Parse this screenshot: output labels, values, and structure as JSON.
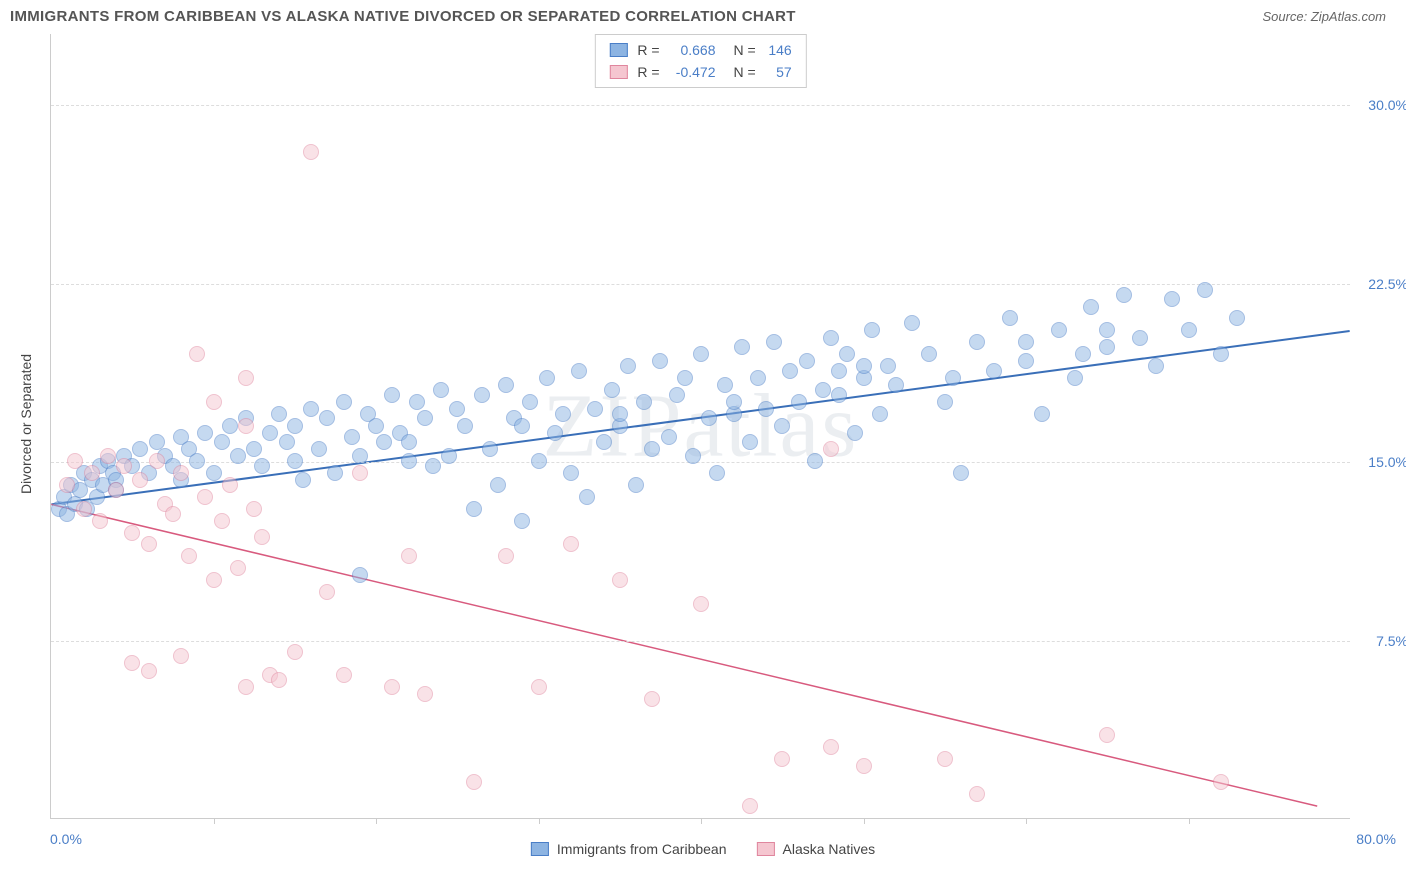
{
  "title": "IMMIGRANTS FROM CARIBBEAN VS ALASKA NATIVE DIVORCED OR SEPARATED CORRELATION CHART",
  "source": "Source: ZipAtlas.com",
  "watermark": "ZIPatlas",
  "chart": {
    "type": "scatter",
    "ylabel": "Divorced or Separated",
    "xlim": [
      0,
      80
    ],
    "ylim": [
      0,
      33
    ],
    "xlabel_min": "0.0%",
    "xlabel_max": "80.0%",
    "yticks": [
      7.5,
      15.0,
      22.5,
      30.0
    ],
    "ytick_labels": [
      "7.5%",
      "15.0%",
      "22.5%",
      "30.0%"
    ],
    "xticks": [
      10,
      20,
      30,
      40,
      50,
      60,
      70
    ],
    "grid_color": "#dddddd",
    "axis_color": "#cccccc",
    "background_color": "#ffffff",
    "tick_label_color": "#4a7ec7",
    "marker_radius": 8,
    "marker_opacity": 0.5,
    "series": [
      {
        "name": "Immigrants from Caribbean",
        "fill_color": "#8db4e2",
        "stroke_color": "#4a7ec7",
        "trend_color": "#3a6fb8",
        "trend_width": 2,
        "R": "0.668",
        "N": "146",
        "trend": {
          "x1": 0,
          "y1": 13.2,
          "x2": 80,
          "y2": 20.5
        },
        "points": [
          [
            0.5,
            13.0
          ],
          [
            0.8,
            13.5
          ],
          [
            1.0,
            12.8
          ],
          [
            1.2,
            14.0
          ],
          [
            1.5,
            13.2
          ],
          [
            1.8,
            13.8
          ],
          [
            2.0,
            14.5
          ],
          [
            2.2,
            13.0
          ],
          [
            2.5,
            14.2
          ],
          [
            2.8,
            13.5
          ],
          [
            3.0,
            14.8
          ],
          [
            3.2,
            14.0
          ],
          [
            3.5,
            15.0
          ],
          [
            3.8,
            14.5
          ],
          [
            4.0,
            14.2
          ],
          [
            4.5,
            15.2
          ],
          [
            5.0,
            14.8
          ],
          [
            5.5,
            15.5
          ],
          [
            6.0,
            14.5
          ],
          [
            6.5,
            15.8
          ],
          [
            7.0,
            15.2
          ],
          [
            7.5,
            14.8
          ],
          [
            8.0,
            16.0
          ],
          [
            8.5,
            15.5
          ],
          [
            9.0,
            15.0
          ],
          [
            9.5,
            16.2
          ],
          [
            10.0,
            14.5
          ],
          [
            10.5,
            15.8
          ],
          [
            11.0,
            16.5
          ],
          [
            11.5,
            15.2
          ],
          [
            12.0,
            16.8
          ],
          [
            12.5,
            15.5
          ],
          [
            13.0,
            14.8
          ],
          [
            13.5,
            16.2
          ],
          [
            14.0,
            17.0
          ],
          [
            14.5,
            15.8
          ],
          [
            15.0,
            16.5
          ],
          [
            15.5,
            14.2
          ],
          [
            16.0,
            17.2
          ],
          [
            16.5,
            15.5
          ],
          [
            17.0,
            16.8
          ],
          [
            17.5,
            14.5
          ],
          [
            18.0,
            17.5
          ],
          [
            18.5,
            16.0
          ],
          [
            19.0,
            15.2
          ],
          [
            19.5,
            17.0
          ],
          [
            20.0,
            16.5
          ],
          [
            20.5,
            15.8
          ],
          [
            21.0,
            17.8
          ],
          [
            21.5,
            16.2
          ],
          [
            22.0,
            15.0
          ],
          [
            22.5,
            17.5
          ],
          [
            23.0,
            16.8
          ],
          [
            23.5,
            14.8
          ],
          [
            24.0,
            18.0
          ],
          [
            24.5,
            15.2
          ],
          [
            25.0,
            17.2
          ],
          [
            25.5,
            16.5
          ],
          [
            26.0,
            13.0
          ],
          [
            26.5,
            17.8
          ],
          [
            27.0,
            15.5
          ],
          [
            27.5,
            14.0
          ],
          [
            28.0,
            18.2
          ],
          [
            28.5,
            16.8
          ],
          [
            29.0,
            12.5
          ],
          [
            29.5,
            17.5
          ],
          [
            30.0,
            15.0
          ],
          [
            30.5,
            18.5
          ],
          [
            31.0,
            16.2
          ],
          [
            31.5,
            17.0
          ],
          [
            32.0,
            14.5
          ],
          [
            32.5,
            18.8
          ],
          [
            33.0,
            13.5
          ],
          [
            33.5,
            17.2
          ],
          [
            34.0,
            15.8
          ],
          [
            34.5,
            18.0
          ],
          [
            35.0,
            16.5
          ],
          [
            35.5,
            19.0
          ],
          [
            36.0,
            14.0
          ],
          [
            36.5,
            17.5
          ],
          [
            37.0,
            15.5
          ],
          [
            37.5,
            19.2
          ],
          [
            38.0,
            16.0
          ],
          [
            38.5,
            17.8
          ],
          [
            39.0,
            18.5
          ],
          [
            39.5,
            15.2
          ],
          [
            40.0,
            19.5
          ],
          [
            40.5,
            16.8
          ],
          [
            41.0,
            14.5
          ],
          [
            41.5,
            18.2
          ],
          [
            42.0,
            17.0
          ],
          [
            42.5,
            19.8
          ],
          [
            43.0,
            15.8
          ],
          [
            43.5,
            18.5
          ],
          [
            44.0,
            17.2
          ],
          [
            44.5,
            20.0
          ],
          [
            45.0,
            16.5
          ],
          [
            45.5,
            18.8
          ],
          [
            46.0,
            17.5
          ],
          [
            46.5,
            19.2
          ],
          [
            47.0,
            15.0
          ],
          [
            47.5,
            18.0
          ],
          [
            48.0,
            20.2
          ],
          [
            48.5,
            17.8
          ],
          [
            49.0,
            19.5
          ],
          [
            49.5,
            16.2
          ],
          [
            50.0,
            18.5
          ],
          [
            50.5,
            20.5
          ],
          [
            51.0,
            17.0
          ],
          [
            51.5,
            19.0
          ],
          [
            52.0,
            18.2
          ],
          [
            53.0,
            20.8
          ],
          [
            54.0,
            19.5
          ],
          [
            55.0,
            17.5
          ],
          [
            56.0,
            14.5
          ],
          [
            57.0,
            20.0
          ],
          [
            58.0,
            18.8
          ],
          [
            59.0,
            21.0
          ],
          [
            60.0,
            19.2
          ],
          [
            61.0,
            17.0
          ],
          [
            62.0,
            20.5
          ],
          [
            63.0,
            18.5
          ],
          [
            64.0,
            21.5
          ],
          [
            65.0,
            19.8
          ],
          [
            66.0,
            22.0
          ],
          [
            67.0,
            20.2
          ],
          [
            68.0,
            19.0
          ],
          [
            69.0,
            21.8
          ],
          [
            70.0,
            20.5
          ],
          [
            71.0,
            22.2
          ],
          [
            72.0,
            19.5
          ],
          [
            73.0,
            21.0
          ],
          [
            63.5,
            19.5
          ],
          [
            55.5,
            18.5
          ],
          [
            48.5,
            18.8
          ],
          [
            42.0,
            17.5
          ],
          [
            35.0,
            17.0
          ],
          [
            29.0,
            16.5
          ],
          [
            22.0,
            15.8
          ],
          [
            15.0,
            15.0
          ],
          [
            8.0,
            14.2
          ],
          [
            4.0,
            13.8
          ],
          [
            50.0,
            19.0
          ],
          [
            60.0,
            20.0
          ],
          [
            65.0,
            20.5
          ],
          [
            19.0,
            10.2
          ]
        ]
      },
      {
        "name": "Alaska Natives",
        "fill_color": "#f5c6d0",
        "stroke_color": "#e0869e",
        "trend_color": "#d85a7e",
        "trend_width": 1.5,
        "R": "-0.472",
        "N": "57",
        "trend": {
          "x1": 0,
          "y1": 13.2,
          "x2": 78,
          "y2": 0.5
        },
        "points": [
          [
            1.0,
            14.0
          ],
          [
            1.5,
            15.0
          ],
          [
            2.0,
            13.0
          ],
          [
            2.5,
            14.5
          ],
          [
            3.0,
            12.5
          ],
          [
            3.5,
            15.2
          ],
          [
            4.0,
            13.8
          ],
          [
            4.5,
            14.8
          ],
          [
            5.0,
            12.0
          ],
          [
            5.5,
            14.2
          ],
          [
            6.0,
            11.5
          ],
          [
            6.5,
            15.0
          ],
          [
            7.0,
            13.2
          ],
          [
            7.5,
            12.8
          ],
          [
            8.0,
            14.5
          ],
          [
            8.5,
            11.0
          ],
          [
            9.0,
            19.5
          ],
          [
            9.5,
            13.5
          ],
          [
            10.0,
            17.5
          ],
          [
            10.5,
            12.5
          ],
          [
            11.0,
            14.0
          ],
          [
            11.5,
            10.5
          ],
          [
            12.0,
            18.5
          ],
          [
            12.5,
            13.0
          ],
          [
            13.0,
            11.8
          ],
          [
            13.5,
            6.0
          ],
          [
            5.0,
            6.5
          ],
          [
            6.0,
            6.2
          ],
          [
            8.0,
            6.8
          ],
          [
            10.0,
            10.0
          ],
          [
            12.0,
            5.5
          ],
          [
            14.0,
            5.8
          ],
          [
            15.0,
            7.0
          ],
          [
            16.0,
            28.0
          ],
          [
            17.0,
            9.5
          ],
          [
            18.0,
            6.0
          ],
          [
            19.0,
            14.5
          ],
          [
            21.0,
            5.5
          ],
          [
            22.0,
            11.0
          ],
          [
            23.0,
            5.2
          ],
          [
            26.0,
            1.5
          ],
          [
            28.0,
            11.0
          ],
          [
            30.0,
            5.5
          ],
          [
            32.0,
            11.5
          ],
          [
            35.0,
            10.0
          ],
          [
            37.0,
            5.0
          ],
          [
            40.0,
            9.0
          ],
          [
            43.0,
            0.5
          ],
          [
            45.0,
            2.5
          ],
          [
            48.0,
            3.0
          ],
          [
            50.0,
            2.2
          ],
          [
            55.0,
            2.5
          ],
          [
            57.0,
            1.0
          ],
          [
            48.0,
            15.5
          ],
          [
            65.0,
            3.5
          ],
          [
            72.0,
            1.5
          ],
          [
            12.0,
            16.5
          ]
        ]
      }
    ],
    "legend_labels": [
      "Immigrants from Caribbean",
      "Alaska Natives"
    ]
  }
}
